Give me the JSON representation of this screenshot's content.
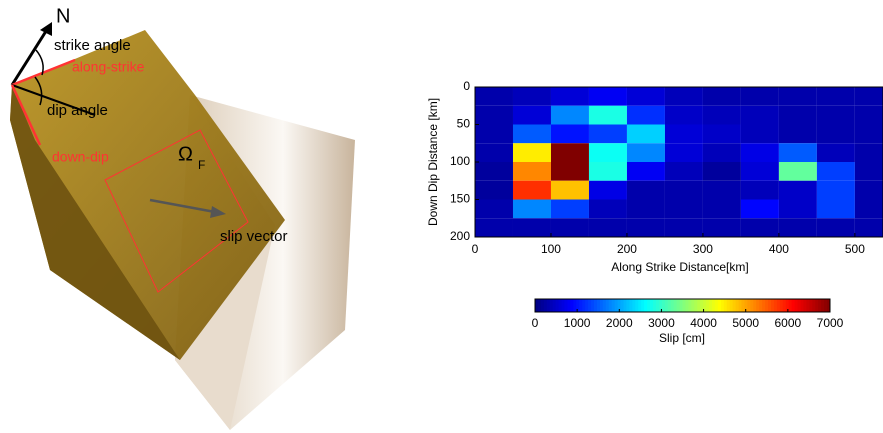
{
  "diagram": {
    "north": "N",
    "strike_angle": "strike angle",
    "along_strike": "along-strike",
    "dip_angle": "dip angle",
    "down_dip": "down-dip",
    "fault": "Ω",
    "fault_sub": "F",
    "slip_vector": "slip vector"
  },
  "chart_data": {
    "type": "heatmap",
    "xlabel": "Along Strike Distance[km]",
    "ylabel": "Down Dip Distance [km]",
    "x": [
      0,
      50,
      100,
      150,
      200,
      250,
      300,
      350,
      400,
      450,
      500,
      550
    ],
    "y": [
      0,
      25,
      50,
      75,
      100,
      125,
      150,
      175,
      200
    ],
    "values": [
      [
        300,
        400,
        600,
        800,
        600,
        400,
        300,
        300,
        300,
        300,
        300
      ],
      [
        300,
        600,
        1800,
        2800,
        1200,
        500,
        400,
        400,
        300,
        300,
        300
      ],
      [
        300,
        1500,
        1000,
        1300,
        2300,
        600,
        500,
        400,
        300,
        300,
        300
      ],
      [
        300,
        4500,
        7000,
        2700,
        1800,
        600,
        400,
        700,
        1500,
        400,
        300
      ],
      [
        200,
        5200,
        7000,
        2800,
        800,
        400,
        200,
        600,
        3300,
        1300,
        300
      ],
      [
        200,
        5800,
        4800,
        700,
        300,
        300,
        300,
        400,
        500,
        1300,
        300
      ],
      [
        300,
        1800,
        1300,
        400,
        300,
        300,
        300,
        900,
        500,
        1300,
        300
      ],
      [
        300,
        300,
        300,
        300,
        300,
        300,
        300,
        300,
        300,
        300,
        300
      ]
    ],
    "xlim": [
      0,
      537
    ],
    "ylim": [
      200,
      0
    ],
    "xticks": [
      0,
      100,
      200,
      300,
      400,
      500
    ],
    "yticks": [
      0,
      50,
      100,
      150,
      200
    ],
    "colormap": "jet",
    "clim": [
      0,
      7000
    ],
    "clabel": "Slip [cm]",
    "cticks": [
      0,
      1000,
      2000,
      3000,
      4000,
      5000,
      6000,
      7000
    ]
  }
}
